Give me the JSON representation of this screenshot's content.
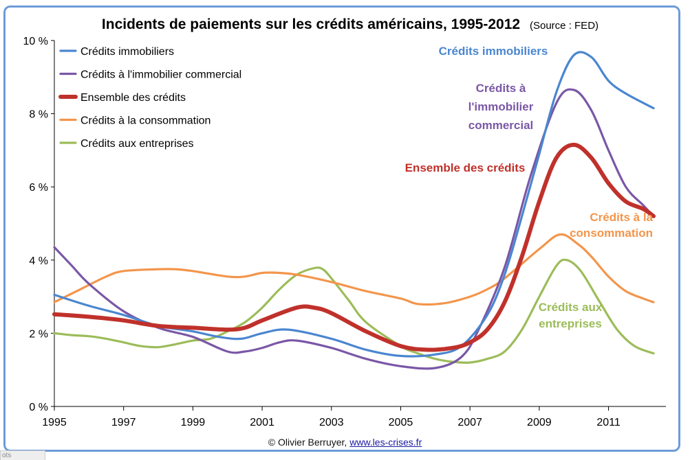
{
  "chart_data": {
    "type": "line",
    "title": "Incidents de paiements sur les crédits américains, 1995-2012",
    "subtitle": "(Source : FED)",
    "xlabel": "",
    "ylabel": "",
    "xlim": [
      1995,
      2012.3
    ],
    "ylim": [
      0,
      10
    ],
    "x_ticks": [
      1995,
      1997,
      1999,
      2001,
      2003,
      2005,
      2007,
      2009,
      2011
    ],
    "y_ticks": [
      {
        "value": 0,
        "label": "0 %"
      },
      {
        "value": 2,
        "label": "2 %"
      },
      {
        "value": 4,
        "label": "4 %"
      },
      {
        "value": 6,
        "label": "6 %"
      },
      {
        "value": 8,
        "label": "8 %"
      },
      {
        "value": 10,
        "label": "10 %"
      }
    ],
    "grid": false,
    "legend_position": "top-left",
    "series": [
      {
        "name": "Crédits immobiliers",
        "color": "#4a86d0",
        "annotation": "Crédits immobiliers",
        "points": [
          [
            1995,
            3.05
          ],
          [
            1996,
            2.75
          ],
          [
            1997,
            2.5
          ],
          [
            1998,
            2.2
          ],
          [
            1999,
            2.05
          ],
          [
            1999.75,
            1.9
          ],
          [
            2000.4,
            1.85
          ],
          [
            2001,
            2.0
          ],
          [
            2001.75,
            2.1
          ],
          [
            2003,
            1.85
          ],
          [
            2004,
            1.55
          ],
          [
            2005,
            1.38
          ],
          [
            2006,
            1.42
          ],
          [
            2006.75,
            1.65
          ],
          [
            2007.5,
            2.5
          ],
          [
            2008,
            3.6
          ],
          [
            2008.5,
            5.2
          ],
          [
            2009,
            6.9
          ],
          [
            2009.5,
            8.6
          ],
          [
            2010,
            9.6
          ],
          [
            2010.5,
            9.55
          ],
          [
            2011,
            8.9
          ],
          [
            2011.5,
            8.55
          ],
          [
            2012.3,
            8.15
          ]
        ]
      },
      {
        "name": "Crédits à l'immobilier commercial",
        "color": "#7a57a6",
        "annotation": "Crédits à l'immobilier commercial",
        "points": [
          [
            1995,
            4.35
          ],
          [
            1995.5,
            3.85
          ],
          [
            1996,
            3.35
          ],
          [
            1997,
            2.6
          ],
          [
            1998,
            2.15
          ],
          [
            1999,
            1.9
          ],
          [
            2000,
            1.5
          ],
          [
            2000.5,
            1.5
          ],
          [
            2001,
            1.6
          ],
          [
            2001.5,
            1.75
          ],
          [
            2002,
            1.8
          ],
          [
            2003,
            1.6
          ],
          [
            2004,
            1.3
          ],
          [
            2005,
            1.1
          ],
          [
            2006,
            1.05
          ],
          [
            2006.75,
            1.35
          ],
          [
            2007.25,
            2.1
          ],
          [
            2008,
            3.8
          ],
          [
            2008.75,
            6.3
          ],
          [
            2009.5,
            8.3
          ],
          [
            2010,
            8.65
          ],
          [
            2010.5,
            8.1
          ],
          [
            2011,
            7.0
          ],
          [
            2011.5,
            6.0
          ],
          [
            2012,
            5.5
          ],
          [
            2012.3,
            5.2
          ]
        ]
      },
      {
        "name": "Ensemble des crédits",
        "color": "#c0312b",
        "annotation": "Ensemble des crédits",
        "points": [
          [
            1995,
            2.52
          ],
          [
            1996,
            2.45
          ],
          [
            1997,
            2.35
          ],
          [
            1998,
            2.2
          ],
          [
            1999,
            2.15
          ],
          [
            2000,
            2.1
          ],
          [
            2000.5,
            2.15
          ],
          [
            2001,
            2.35
          ],
          [
            2002,
            2.7
          ],
          [
            2002.5,
            2.7
          ],
          [
            2003,
            2.55
          ],
          [
            2004,
            2.05
          ],
          [
            2005,
            1.65
          ],
          [
            2005.75,
            1.55
          ],
          [
            2006.5,
            1.6
          ],
          [
            2007,
            1.75
          ],
          [
            2007.5,
            2.1
          ],
          [
            2008,
            2.85
          ],
          [
            2008.5,
            4.1
          ],
          [
            2009,
            5.6
          ],
          [
            2009.5,
            6.8
          ],
          [
            2010,
            7.15
          ],
          [
            2010.5,
            6.8
          ],
          [
            2011,
            6.1
          ],
          [
            2011.5,
            5.6
          ],
          [
            2012,
            5.4
          ],
          [
            2012.3,
            5.2
          ]
        ]
      },
      {
        "name": "Crédits à la consommation",
        "color": "#f3954b",
        "annotation": "Crédits à la consommation",
        "points": [
          [
            1995,
            2.85
          ],
          [
            1995.75,
            3.2
          ],
          [
            1996.5,
            3.55
          ],
          [
            1997,
            3.7
          ],
          [
            1998,
            3.75
          ],
          [
            1998.5,
            3.75
          ],
          [
            1999,
            3.7
          ],
          [
            2000,
            3.55
          ],
          [
            2000.5,
            3.55
          ],
          [
            2001,
            3.65
          ],
          [
            2001.5,
            3.65
          ],
          [
            2002,
            3.6
          ],
          [
            2003,
            3.4
          ],
          [
            2004,
            3.15
          ],
          [
            2005,
            2.95
          ],
          [
            2005.5,
            2.8
          ],
          [
            2006.25,
            2.82
          ],
          [
            2007,
            3.0
          ],
          [
            2007.5,
            3.2
          ],
          [
            2008,
            3.5
          ],
          [
            2009,
            4.3
          ],
          [
            2009.6,
            4.7
          ],
          [
            2010.1,
            4.45
          ],
          [
            2010.5,
            4.1
          ],
          [
            2011,
            3.55
          ],
          [
            2011.5,
            3.15
          ],
          [
            2012,
            2.95
          ],
          [
            2012.3,
            2.85
          ]
        ]
      },
      {
        "name": "Crédits aux entreprises",
        "color": "#9cbc59",
        "annotation": "Crédits aux entreprises",
        "points": [
          [
            1995,
            2.0
          ],
          [
            1995.5,
            1.95
          ],
          [
            1996,
            1.92
          ],
          [
            1996.5,
            1.85
          ],
          [
            1997,
            1.75
          ],
          [
            1997.5,
            1.65
          ],
          [
            1998,
            1.62
          ],
          [
            1998.5,
            1.7
          ],
          [
            1999,
            1.8
          ],
          [
            1999.5,
            1.85
          ],
          [
            2000,
            2.05
          ],
          [
            2000.5,
            2.3
          ],
          [
            2001,
            2.7
          ],
          [
            2001.5,
            3.2
          ],
          [
            2002,
            3.6
          ],
          [
            2002.5,
            3.78
          ],
          [
            2002.75,
            3.75
          ],
          [
            2003,
            3.5
          ],
          [
            2003.5,
            2.9
          ],
          [
            2004,
            2.3
          ],
          [
            2005,
            1.65
          ],
          [
            2005.5,
            1.45
          ],
          [
            2006,
            1.3
          ],
          [
            2006.5,
            1.22
          ],
          [
            2007,
            1.2
          ],
          [
            2007.5,
            1.3
          ],
          [
            2008,
            1.5
          ],
          [
            2008.5,
            2.1
          ],
          [
            2009,
            3.0
          ],
          [
            2009.5,
            3.85
          ],
          [
            2009.8,
            4.0
          ],
          [
            2010.2,
            3.7
          ],
          [
            2010.75,
            2.85
          ],
          [
            2011.25,
            2.1
          ],
          [
            2011.75,
            1.65
          ],
          [
            2012.3,
            1.45
          ]
        ]
      }
    ]
  },
  "footer": {
    "copyright": "© Olivier Berruyer,",
    "link": "www.les-crises.fr"
  },
  "edge_tab_text": "ots"
}
